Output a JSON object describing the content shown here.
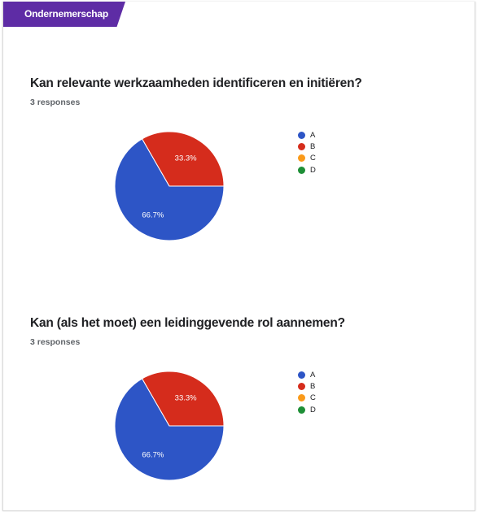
{
  "section": {
    "label": "Ondernemerschap"
  },
  "colors": {
    "section_tag": "#5e2ca5",
    "A": "#2d55c6",
    "B": "#d52c1c",
    "C": "#fa9a1a",
    "D": "#1e8f36"
  },
  "chart_data": [
    {
      "type": "pie",
      "title": "Kan relevante werkzaamheden identificeren en initiëren?",
      "subtitle": "3 responses",
      "categories": [
        "A",
        "B",
        "C",
        "D"
      ],
      "values": [
        66.7,
        33.3,
        0,
        0
      ],
      "data_labels": [
        "66.7%",
        "33.3%",
        "",
        ""
      ],
      "legend_placement": "right"
    },
    {
      "type": "pie",
      "title": "Kan (als het moet) een leidinggevende rol aannemen?",
      "subtitle": "3 responses",
      "categories": [
        "A",
        "B",
        "C",
        "D"
      ],
      "values": [
        66.7,
        33.3,
        0,
        0
      ],
      "data_labels": [
        "66.7%",
        "33.3%",
        "",
        ""
      ],
      "legend_placement": "right"
    }
  ]
}
